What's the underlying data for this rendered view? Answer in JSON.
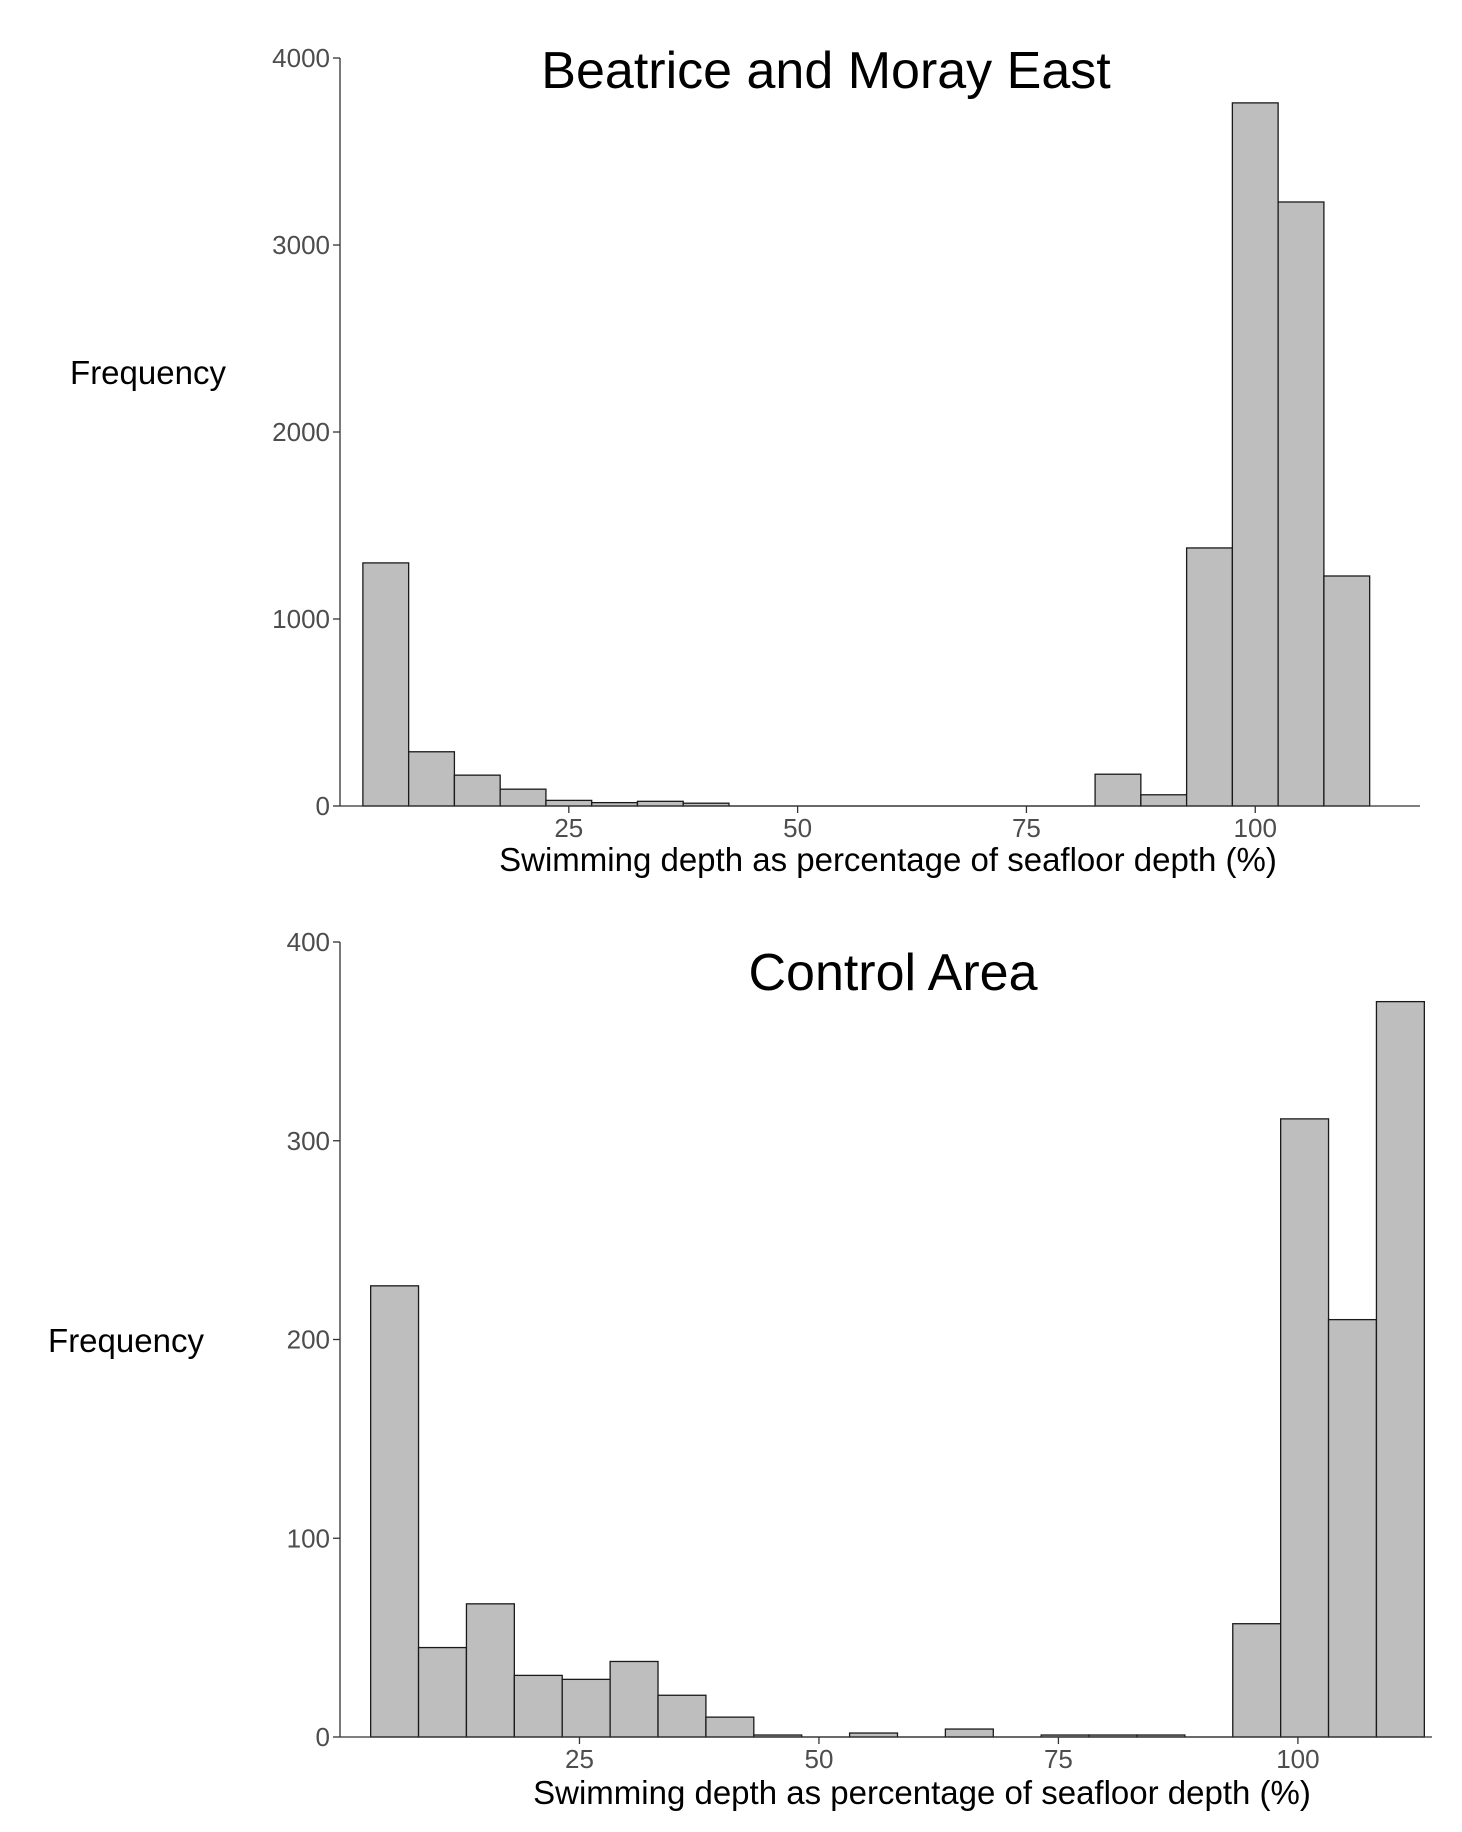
{
  "bar_color": "#bebebe",
  "bar_edge_color": "#1a1a1a",
  "chart_data": [
    {
      "type": "bar",
      "title": "Beatrice and Moray East",
      "xlabel": "Swimming depth as percentage of seafloor depth (%)",
      "ylabel": "Frequency",
      "xlim": [
        0,
        118
      ],
      "ylim": [
        0,
        4000
      ],
      "xticks": [
        25,
        50,
        75,
        100
      ],
      "xtick_labels": [
        "25",
        "50",
        "75",
        "100"
      ],
      "yticks": [
        0,
        1000,
        2000,
        3000,
        4000
      ],
      "ytick_labels": [
        "0",
        "1000",
        "2000",
        "3000",
        "4000"
      ],
      "grid": false,
      "bin_width": 5,
      "bins": [
        {
          "x0": 2.5,
          "x1": 7.5,
          "count": 1300
        },
        {
          "x0": 7.5,
          "x1": 12.5,
          "count": 290
        },
        {
          "x0": 12.5,
          "x1": 17.5,
          "count": 165
        },
        {
          "x0": 17.5,
          "x1": 22.5,
          "count": 90
        },
        {
          "x0": 22.5,
          "x1": 27.5,
          "count": 30
        },
        {
          "x0": 27.5,
          "x1": 32.5,
          "count": 18
        },
        {
          "x0": 32.5,
          "x1": 37.5,
          "count": 25
        },
        {
          "x0": 37.5,
          "x1": 42.5,
          "count": 15
        },
        {
          "x0": 42.5,
          "x1": 47.5,
          "count": 0
        },
        {
          "x0": 47.5,
          "x1": 52.5,
          "count": 0
        },
        {
          "x0": 52.5,
          "x1": 57.5,
          "count": 0
        },
        {
          "x0": 57.5,
          "x1": 62.5,
          "count": 0
        },
        {
          "x0": 62.5,
          "x1": 67.5,
          "count": 0
        },
        {
          "x0": 67.5,
          "x1": 72.5,
          "count": 0
        },
        {
          "x0": 72.5,
          "x1": 77.5,
          "count": 0
        },
        {
          "x0": 77.5,
          "x1": 82.5,
          "count": 0
        },
        {
          "x0": 82.5,
          "x1": 87.5,
          "count": 170
        },
        {
          "x0": 87.5,
          "x1": 92.5,
          "count": 60
        },
        {
          "x0": 92.5,
          "x1": 97.5,
          "count": 1380
        },
        {
          "x0": 97.5,
          "x1": 102.5,
          "count": 3760
        },
        {
          "x0": 102.5,
          "x1": 107.5,
          "count": 3230
        },
        {
          "x0": 107.5,
          "x1": 112.5,
          "count": 1230
        }
      ]
    },
    {
      "type": "bar",
      "title": "Control Area",
      "xlabel": "Swimming depth as percentage of seafloor depth (%)",
      "ylabel": "Frequency",
      "xlim": [
        0,
        114
      ],
      "ylim": [
        0,
        400
      ],
      "xticks": [
        25,
        50,
        75,
        100
      ],
      "xtick_labels": [
        "25",
        "50",
        "75",
        "100"
      ],
      "yticks": [
        0,
        100,
        200,
        300,
        400
      ],
      "ytick_labels": [
        "0",
        "100",
        "200",
        "300",
        "400"
      ],
      "grid": false,
      "bin_width": 5,
      "bins": [
        {
          "x0": 3.2,
          "x1": 8.2,
          "count": 227
        },
        {
          "x0": 8.2,
          "x1": 13.2,
          "count": 45
        },
        {
          "x0": 13.2,
          "x1": 18.2,
          "count": 67
        },
        {
          "x0": 18.2,
          "x1": 23.2,
          "count": 31
        },
        {
          "x0": 23.2,
          "x1": 28.2,
          "count": 29
        },
        {
          "x0": 28.2,
          "x1": 33.2,
          "count": 38
        },
        {
          "x0": 33.2,
          "x1": 38.2,
          "count": 21
        },
        {
          "x0": 38.2,
          "x1": 43.2,
          "count": 10
        },
        {
          "x0": 43.2,
          "x1": 48.2,
          "count": 1
        },
        {
          "x0": 48.2,
          "x1": 53.2,
          "count": 0
        },
        {
          "x0": 53.2,
          "x1": 58.2,
          "count": 2
        },
        {
          "x0": 58.2,
          "x1": 63.2,
          "count": 0
        },
        {
          "x0": 63.2,
          "x1": 68.2,
          "count": 4
        },
        {
          "x0": 68.2,
          "x1": 73.2,
          "count": 0
        },
        {
          "x0": 73.2,
          "x1": 78.2,
          "count": 1
        },
        {
          "x0": 78.2,
          "x1": 83.2,
          "count": 1
        },
        {
          "x0": 83.2,
          "x1": 88.2,
          "count": 1
        },
        {
          "x0": 88.2,
          "x1": 93.2,
          "count": 0
        },
        {
          "x0": 93.2,
          "x1": 98.2,
          "count": 57
        },
        {
          "x0": 98.2,
          "x1": 103.2,
          "count": 311
        },
        {
          "x0": 103.2,
          "x1": 108.2,
          "count": 210
        },
        {
          "x0": 108.2,
          "x1": 113.2,
          "count": 370
        }
      ]
    }
  ]
}
